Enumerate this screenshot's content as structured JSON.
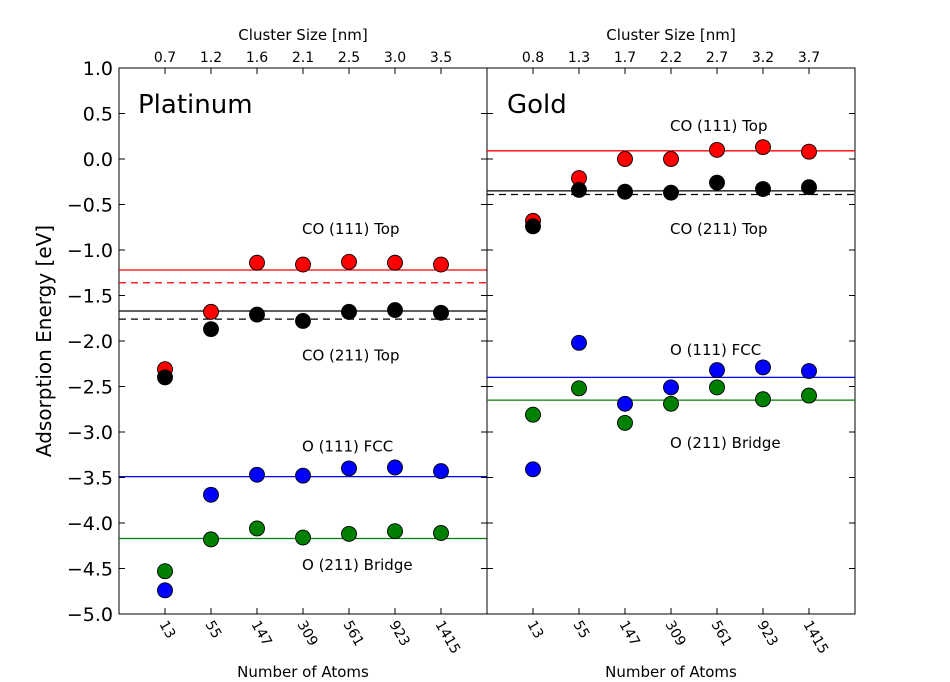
{
  "chart_data": {
    "type": "scatter",
    "ylabel": "Adsorption Energy [eV]",
    "ylim": [
      -5.0,
      1.0
    ],
    "yticks": [
      -5.0,
      -4.5,
      -4.0,
      -3.5,
      -3.0,
      -2.5,
      -2.0,
      -1.5,
      -1.0,
      -0.5,
      0.0,
      0.5,
      1.0
    ],
    "ytick_labels": [
      "−5.0",
      "−4.5",
      "−4.0",
      "−3.5",
      "−3.0",
      "−2.5",
      "−2.0",
      "−1.5",
      "−1.0",
      "−0.5",
      "0.0",
      "0.5",
      "1.0"
    ],
    "grid": false,
    "colors": {
      "co111": "#ff0000",
      "co211": "#000000",
      "o111": "#0000ff",
      "o211": "#008000"
    },
    "panels": [
      {
        "title": "Platinum",
        "xlabel": "Number of Atoms",
        "top_xlabel": "Cluster Size [nm]",
        "categories": [
          "13",
          "55",
          "147",
          "309",
          "561",
          "923",
          "1415"
        ],
        "top_ticks": [
          "0.7",
          "1.2",
          "1.6",
          "2.1",
          "2.5",
          "3.0",
          "3.5"
        ],
        "series": [
          {
            "key": "co111",
            "values": [
              -2.31,
              -1.68,
              -1.14,
              -1.16,
              -1.13,
              -1.14,
              -1.16
            ]
          },
          {
            "key": "co211",
            "values": [
              -2.4,
              -1.87,
              -1.71,
              -1.78,
              -1.68,
              -1.66,
              -1.69
            ]
          },
          {
            "key": "o111",
            "values": [
              -4.74,
              -3.69,
              -3.47,
              -3.48,
              -3.4,
              -3.39,
              -3.43
            ]
          },
          {
            "key": "o211",
            "values": [
              -4.53,
              -4.18,
              -4.06,
              -4.16,
              -4.12,
              -4.09,
              -4.11
            ]
          }
        ],
        "hlines": [
          {
            "key": "co111",
            "y": -1.22,
            "style": "solid"
          },
          {
            "key": "co111",
            "y": -1.36,
            "style": "dashed"
          },
          {
            "key": "co211",
            "y": -1.67,
            "style": "solid"
          },
          {
            "key": "co211",
            "y": -1.76,
            "style": "dashed"
          },
          {
            "key": "o111",
            "y": -3.49,
            "style": "solid"
          },
          {
            "key": "o211",
            "y": -4.17,
            "style": "solid"
          }
        ],
        "annotations": [
          {
            "text": "CO (111) Top",
            "y": -0.77
          },
          {
            "text": "CO (211) Top",
            "y": -2.16
          },
          {
            "text": "O (111) FCC",
            "y": -3.16
          },
          {
            "text": "O (211) Bridge",
            "y": -4.46
          }
        ]
      },
      {
        "title": "Gold",
        "xlabel": "Number of Atoms",
        "top_xlabel": "Cluster Size [nm]",
        "categories": [
          "13",
          "55",
          "147",
          "309",
          "561",
          "923",
          "1415"
        ],
        "top_ticks": [
          "0.8",
          "1.3",
          "1.7",
          "2.2",
          "2.7",
          "3.2",
          "3.7"
        ],
        "series": [
          {
            "key": "co111",
            "values": [
              -0.68,
              -0.21,
              0.0,
              0.0,
              0.1,
              0.13,
              0.08
            ]
          },
          {
            "key": "co211",
            "values": [
              -0.74,
              -0.34,
              -0.36,
              -0.37,
              -0.26,
              -0.33,
              -0.31
            ]
          },
          {
            "key": "o111",
            "values": [
              -3.41,
              -2.02,
              -2.69,
              -2.51,
              -2.32,
              -2.29,
              -2.33
            ]
          },
          {
            "key": "o211",
            "values": [
              -2.81,
              -2.52,
              -2.9,
              -2.69,
              -2.51,
              -2.64,
              -2.6
            ]
          }
        ],
        "hlines": [
          {
            "key": "co111",
            "y": 0.09,
            "style": "solid"
          },
          {
            "key": "co211",
            "y": -0.35,
            "style": "solid"
          },
          {
            "key": "co211",
            "y": -0.39,
            "style": "dashed"
          },
          {
            "key": "o111",
            "y": -2.4,
            "style": "solid"
          },
          {
            "key": "o211",
            "y": -2.65,
            "style": "solid"
          }
        ],
        "annotations": [
          {
            "text": "CO (111) Top",
            "y": 0.36
          },
          {
            "text": "CO (211) Top",
            "y": -0.77
          },
          {
            "text": "O (111) FCC",
            "y": -2.1
          },
          {
            "text": "O (211) Bridge",
            "y": -3.12
          }
        ]
      }
    ]
  }
}
